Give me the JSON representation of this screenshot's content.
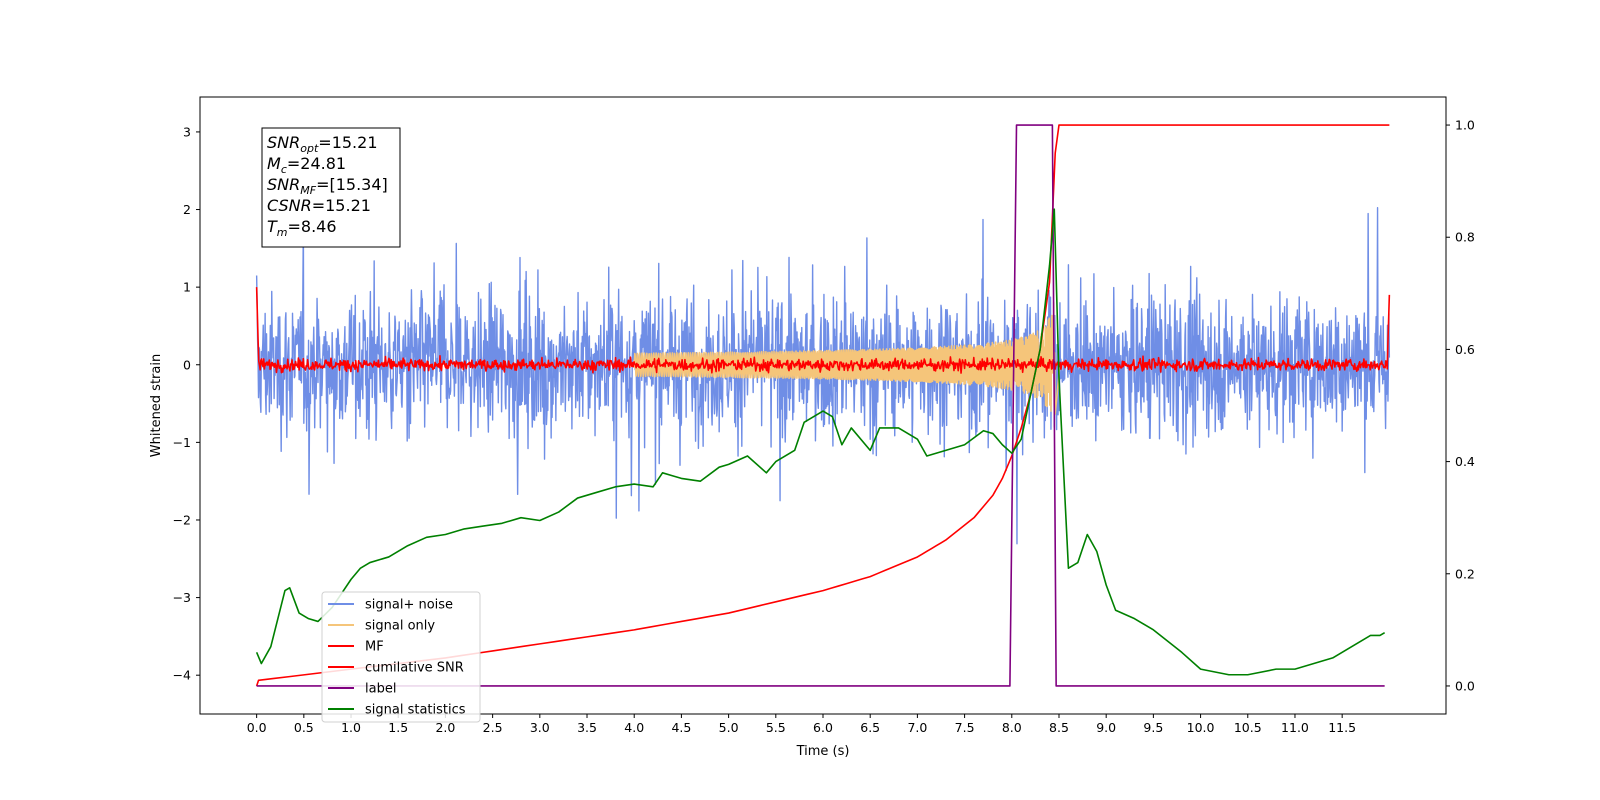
{
  "chart_data": {
    "type": "line",
    "xlabel": "Time (s)",
    "ylabel": "Whitened strain",
    "xlim": [
      -0.6,
      12.6
    ],
    "ylim": [
      -4.5,
      3.45
    ],
    "y2lim": [
      -0.05,
      1.05
    ],
    "x_ticks": [
      0.0,
      0.5,
      1.0,
      1.5,
      2.0,
      2.5,
      3.0,
      3.5,
      4.0,
      4.5,
      5.0,
      5.5,
      6.0,
      6.5,
      7.0,
      7.5,
      8.0,
      8.5,
      9.0,
      9.5,
      10.0,
      10.5,
      11.0,
      11.5
    ],
    "x_tick_labels": [
      "0.0",
      "0.5",
      "1.0",
      "1.5",
      "2.0",
      "2.5",
      "3.0",
      "3.5",
      "4.0",
      "4.5",
      "5.0",
      "5.5",
      "6.0",
      "6.5",
      "7.0",
      "7.5",
      "8.0",
      "8.5",
      "9.0",
      "9.5",
      "10.0",
      "10.5",
      "11.0",
      "11.5"
    ],
    "y_ticks": [
      3,
      2,
      1,
      0,
      -1,
      -2,
      -3,
      -4
    ],
    "y_tick_labels": [
      "3",
      "2",
      "1",
      "0",
      "−1",
      "−2",
      "−3",
      "−4"
    ],
    "y2_ticks": [
      1.0,
      0.8,
      0.6,
      0.4,
      0.2,
      0.0
    ],
    "y2_tick_labels": [
      "1.0",
      "0.8",
      "0.6",
      "0.4",
      "0.2",
      "0.0"
    ],
    "grid": false,
    "legend_position": "lower-left",
    "annotation": {
      "lines": [
        {
          "var": "SNR",
          "sub": "opt",
          "value": "=15.21"
        },
        {
          "var": "M",
          "sub": "c",
          "value": "=24.81"
        },
        {
          "var": "SNR",
          "sub": "MF",
          "value": "=[15.34]"
        },
        {
          "var": "CSNR",
          "sub": "",
          "value": "=15.21"
        },
        {
          "var": "T",
          "sub": "m",
          "value": "=8.46"
        }
      ]
    },
    "series": [
      {
        "name": "signal+ noise",
        "axis": "left",
        "color": "#6f8ee6",
        "kind": "noise",
        "t_start": 0.0,
        "t_end": 12.0,
        "amplitude_typical": 1.0,
        "amplitude_max": 2.7
      },
      {
        "name": "signal only",
        "axis": "left",
        "color": "#f5c57a",
        "kind": "chirp",
        "t_start": 4.0,
        "t_merger": 8.46,
        "peak_amplitude": 1.1
      },
      {
        "name": "MF",
        "axis": "left",
        "color": "#ff0000",
        "kind": "mf",
        "t_start": 0.0,
        "t_end": 12.0,
        "start_value": 1.0,
        "end_value": 0.9,
        "noise_amplitude": 0.12
      },
      {
        "name": "cumilative SNR",
        "axis": "right",
        "color": "#ff0000",
        "x": [
          0.0,
          0.02,
          1.0,
          2.0,
          3.0,
          4.0,
          5.0,
          6.0,
          6.5,
          7.0,
          7.3,
          7.6,
          7.8,
          7.9,
          8.0,
          8.1,
          8.2,
          8.3,
          8.4,
          8.46,
          8.5,
          12.0
        ],
        "y": [
          0.0,
          0.01,
          0.03,
          0.05,
          0.075,
          0.1,
          0.13,
          0.17,
          0.195,
          0.23,
          0.26,
          0.3,
          0.34,
          0.37,
          0.41,
          0.46,
          0.52,
          0.6,
          0.72,
          0.95,
          1.0,
          1.0
        ]
      },
      {
        "name": "label",
        "axis": "right",
        "color": "#800080",
        "x": [
          0.0,
          7.98,
          8.05,
          8.43,
          8.47,
          11.95
        ],
        "y": [
          0.0,
          0.0,
          1.0,
          1.0,
          0.0,
          0.0
        ]
      },
      {
        "name": "signal statistics",
        "axis": "right",
        "color": "#008000",
        "x": [
          0.0,
          0.05,
          0.15,
          0.3,
          0.35,
          0.45,
          0.55,
          0.65,
          0.8,
          0.9,
          1.0,
          1.1,
          1.2,
          1.4,
          1.6,
          1.8,
          2.0,
          2.2,
          2.4,
          2.6,
          2.8,
          3.0,
          3.2,
          3.4,
          3.6,
          3.8,
          4.0,
          4.2,
          4.3,
          4.4,
          4.5,
          4.7,
          4.9,
          5.0,
          5.2,
          5.4,
          5.5,
          5.7,
          5.8,
          6.0,
          6.1,
          6.2,
          6.3,
          6.5,
          6.6,
          6.8,
          7.0,
          7.1,
          7.3,
          7.5,
          7.7,
          7.8,
          7.9,
          8.0,
          8.1,
          8.2,
          8.3,
          8.4,
          8.45,
          8.5,
          8.6,
          8.7,
          8.8,
          8.9,
          9.0,
          9.1,
          9.3,
          9.5,
          9.8,
          10.0,
          10.3,
          10.5,
          10.8,
          11.0,
          11.2,
          11.4,
          11.6,
          11.8,
          11.9,
          11.95
        ],
        "y": [
          0.06,
          0.04,
          0.07,
          0.17,
          0.175,
          0.13,
          0.12,
          0.115,
          0.14,
          0.165,
          0.19,
          0.21,
          0.22,
          0.23,
          0.25,
          0.265,
          0.27,
          0.28,
          0.285,
          0.29,
          0.3,
          0.295,
          0.31,
          0.335,
          0.345,
          0.355,
          0.36,
          0.355,
          0.38,
          0.375,
          0.37,
          0.365,
          0.39,
          0.395,
          0.41,
          0.38,
          0.4,
          0.42,
          0.47,
          0.49,
          0.48,
          0.43,
          0.46,
          0.42,
          0.46,
          0.46,
          0.44,
          0.41,
          0.42,
          0.43,
          0.455,
          0.45,
          0.43,
          0.415,
          0.44,
          0.52,
          0.6,
          0.75,
          0.85,
          0.55,
          0.21,
          0.22,
          0.27,
          0.24,
          0.18,
          0.135,
          0.12,
          0.1,
          0.06,
          0.03,
          0.02,
          0.02,
          0.03,
          0.03,
          0.04,
          0.05,
          0.07,
          0.09,
          0.09,
          0.095
        ]
      }
    ]
  }
}
